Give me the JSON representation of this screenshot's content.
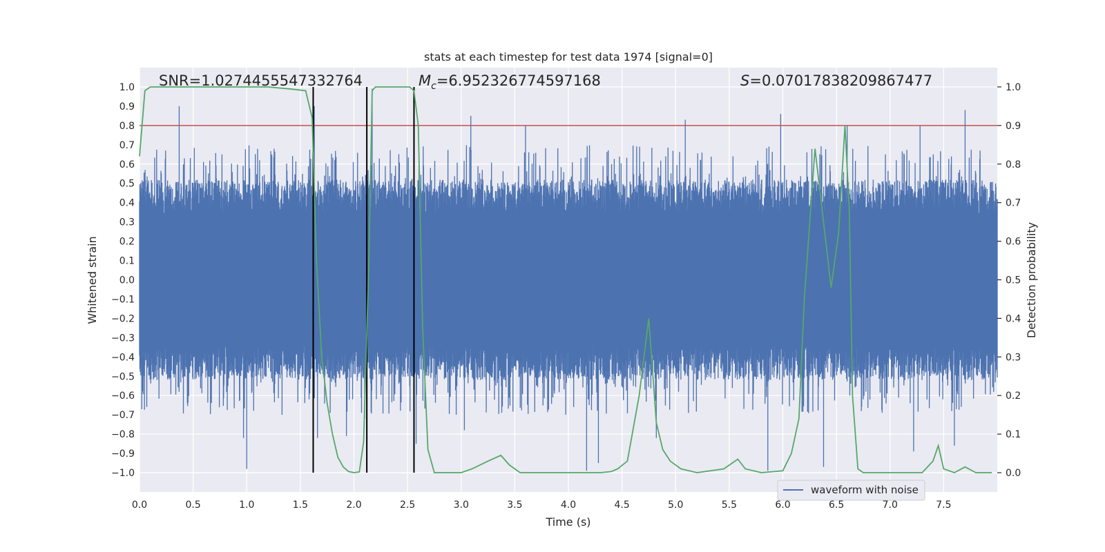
{
  "chart_data": {
    "type": "line",
    "title": "stats at each timestep for test data 1974 [signal=0]",
    "xlabel": "Time (s)",
    "ylabel": "Whitened strain",
    "y2label": "Detection probability",
    "xlim": [
      0.0,
      8.0
    ],
    "ylim": [
      -1.1,
      1.1
    ],
    "y2lim": [
      -0.05,
      1.05
    ],
    "x_ticks": [
      "0.0",
      "0.5",
      "1.0",
      "1.5",
      "2.0",
      "2.5",
      "3.0",
      "3.5",
      "4.0",
      "4.5",
      "5.0",
      "5.5",
      "6.0",
      "6.5",
      "7.0",
      "7.5"
    ],
    "y_ticks": [
      "1.0",
      "0.9",
      "0.8",
      "0.7",
      "0.6",
      "0.5",
      "0.4",
      "0.3",
      "0.2",
      "0.1",
      "0.0",
      "−0.1",
      "−0.2",
      "−0.3",
      "−0.4",
      "−0.5",
      "−0.6",
      "−0.7",
      "−0.8",
      "−0.9",
      "−1.0"
    ],
    "y2_ticks": [
      "1.0",
      "0.9",
      "0.8",
      "0.7",
      "0.6",
      "0.5",
      "0.4",
      "0.3",
      "0.2",
      "0.1",
      "0.0"
    ],
    "grid": true,
    "legend": {
      "position": "lower-right",
      "entries": [
        "waveform with noise"
      ]
    },
    "annotations": {
      "snr": "SNR=1.0274455547332764",
      "mc_symbol": "M",
      "mc_sub": "c",
      "mc_value": "=6.952326774597168",
      "s_symbol": "S",
      "s_value": "=0.07017838209867477"
    },
    "threshold": {
      "axis": "right",
      "value": 0.9
    },
    "vertical_markers": [
      1.62,
      2.12,
      2.56
    ],
    "series": [
      {
        "name": "waveform with noise",
        "axis": "left",
        "envelope_description": "dense noise, typical amplitude ±0.4, spikes to ±1.0",
        "spikes": [
          {
            "x": 0.37,
            "y": 0.9
          },
          {
            "x": 0.97,
            "y": -0.82
          },
          {
            "x": 1.0,
            "y": -0.98
          },
          {
            "x": 1.63,
            "y": 0.9
          },
          {
            "x": 1.66,
            "y": -0.82
          },
          {
            "x": 1.93,
            "y": -0.81
          },
          {
            "x": 2.1,
            "y": -0.72
          },
          {
            "x": 2.17,
            "y": 0.99
          },
          {
            "x": 2.58,
            "y": -0.85
          },
          {
            "x": 3.09,
            "y": 0.85
          },
          {
            "x": 3.03,
            "y": -0.78
          },
          {
            "x": 3.6,
            "y": 0.8
          },
          {
            "x": 4.17,
            "y": -0.99
          },
          {
            "x": 4.28,
            "y": -0.95
          },
          {
            "x": 4.82,
            "y": -0.82
          },
          {
            "x": 5.09,
            "y": 0.83
          },
          {
            "x": 5.86,
            "y": -0.99
          },
          {
            "x": 5.98,
            "y": 0.86
          },
          {
            "x": 6.38,
            "y": -0.97
          },
          {
            "x": 6.6,
            "y": 0.8
          },
          {
            "x": 7.28,
            "y": 0.8
          },
          {
            "x": 7.22,
            "y": -0.89
          },
          {
            "x": 7.6,
            "y": -0.86
          },
          {
            "x": 7.7,
            "y": 0.88
          }
        ]
      },
      {
        "name": "",
        "axis": "right",
        "color": "#55a868",
        "x": [
          0.0,
          0.05,
          0.1,
          0.2,
          0.4,
          0.6,
          0.8,
          1.0,
          1.2,
          1.4,
          1.55,
          1.61,
          1.65,
          1.7,
          1.75,
          1.8,
          1.85,
          1.9,
          1.95,
          2.0,
          2.05,
          2.09,
          2.14,
          2.17,
          2.2,
          2.3,
          2.4,
          2.52,
          2.56,
          2.6,
          2.64,
          2.69,
          2.75,
          2.85,
          3.0,
          3.1,
          3.25,
          3.37,
          3.45,
          3.55,
          3.7,
          3.9,
          4.1,
          4.3,
          4.4,
          4.46,
          4.55,
          4.66,
          4.75,
          4.82,
          4.88,
          4.95,
          5.05,
          5.2,
          5.45,
          5.58,
          5.65,
          5.8,
          6.0,
          6.08,
          6.15,
          6.2,
          6.3,
          6.45,
          6.52,
          6.58,
          6.62,
          6.65,
          6.7,
          6.75,
          7.0,
          7.3,
          7.4,
          7.45,
          7.5,
          7.6,
          7.7,
          7.8,
          7.95
        ],
        "y": [
          0.82,
          0.99,
          1.0,
          1.0,
          1.0,
          1.0,
          1.0,
          1.0,
          1.0,
          0.995,
          0.99,
          0.92,
          0.55,
          0.3,
          0.18,
          0.1,
          0.04,
          0.015,
          0.003,
          0.0,
          0.002,
          0.08,
          0.55,
          0.99,
          1.0,
          1.0,
          1.0,
          1.0,
          0.99,
          0.9,
          0.38,
          0.06,
          0.0,
          0.0,
          0.0,
          0.01,
          0.03,
          0.045,
          0.02,
          0.0,
          0.0,
          0.0,
          0.0,
          0.0,
          0.003,
          0.01,
          0.03,
          0.2,
          0.4,
          0.13,
          0.06,
          0.03,
          0.01,
          0.0,
          0.01,
          0.035,
          0.01,
          0.0,
          0.005,
          0.05,
          0.14,
          0.45,
          0.84,
          0.48,
          0.62,
          0.9,
          0.68,
          0.2,
          0.01,
          0.0,
          0.0,
          0.0,
          0.03,
          0.07,
          0.01,
          0.0,
          0.015,
          0.0,
          0.0
        ]
      }
    ]
  }
}
